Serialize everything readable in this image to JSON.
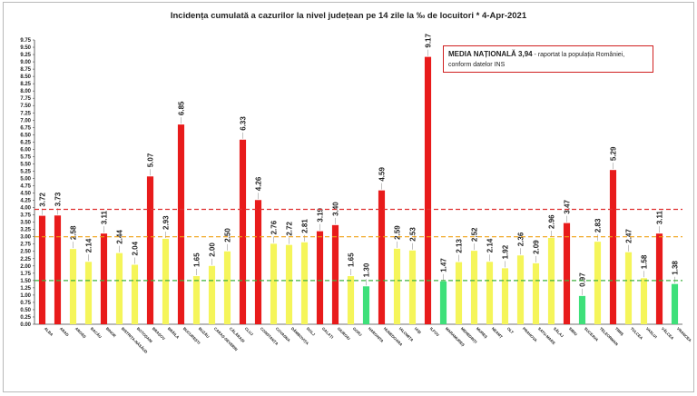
{
  "title": "Incidența cumulată a cazurilor la nivel județean pe 14 zile   la ‰ de locuitori  *  4-Apr-2021",
  "note": {
    "bold": "MEDIA NAȚIONALĂ 3,94",
    "text": " - raportat la populația României, conform datelor INS"
  },
  "chart_data": {
    "type": "bar",
    "title": "Incidența cumulată a cazurilor la nivel județean pe 14 zile   la ‰ de locuitori  *  4-Apr-2021",
    "xlabel": "",
    "ylabel": "",
    "ylim": [
      0,
      9.75
    ],
    "ystep": 0.25,
    "grid": false,
    "categories": [
      "ALBA",
      "ARAD",
      "ARGEȘ",
      "BACĂU",
      "BIHOR",
      "BISTRIȚA-NĂSĂUD",
      "BOTOȘANI",
      "BRAȘOV",
      "BRĂILA",
      "BUCUREȘTI",
      "BUZĂU",
      "CARAȘ-SEVERIN",
      "CĂLĂRAȘI",
      "CLUJ",
      "CONSTANȚA",
      "COVASNA",
      "DÂMBOVIȚA",
      "DOLJ",
      "GALAȚI",
      "GIURGIU",
      "GORJ",
      "HARGHITA",
      "HUNEDOARA",
      "IALOMIȚA",
      "IAȘI",
      "ILFOV",
      "MARAMUREȘ",
      "MEHEDINȚI",
      "MUREȘ",
      "NEAMȚ",
      "OLT",
      "PRAHOVA",
      "SATU-MARE",
      "SĂLAJ",
      "SIBIU",
      "SUCEAVA",
      "TELEORMAN",
      "TIMIȘ",
      "TULCEA",
      "VASLUI",
      "VÂLCEA",
      "VRANCEA"
    ],
    "values": [
      3.72,
      3.73,
      2.58,
      2.14,
      3.11,
      2.44,
      2.04,
      5.07,
      2.93,
      6.85,
      1.65,
      2.0,
      2.5,
      6.33,
      4.26,
      2.76,
      2.72,
      2.81,
      3.19,
      3.4,
      1.65,
      1.3,
      4.59,
      2.59,
      2.53,
      9.17,
      1.47,
      2.13,
      2.52,
      2.14,
      1.92,
      2.36,
      2.09,
      2.96,
      3.47,
      0.97,
      2.83,
      5.29,
      2.47,
      1.58,
      3.11,
      1.38
    ],
    "value_labels": [
      "3.72",
      "3.73",
      "2.58",
      "2.14",
      "3.11",
      "2.44",
      "2.04",
      "5.07",
      "2.93",
      "6.85",
      "1.65",
      "2.00",
      "2.50",
      "6.33",
      "4.26",
      "2.76",
      "2.72",
      "2.81",
      "3.19",
      "3.40",
      "1.65",
      "1.30",
      "4.59",
      "2.59",
      "2.53",
      "9.17",
      "1.47",
      "2.13",
      "2.52",
      "2.14",
      "1.92",
      "2.36",
      "2.09",
      "2.96",
      "3.47",
      "0.97",
      "2.83",
      "5.29",
      "2.47",
      "1.58",
      "3.11",
      "1.38"
    ],
    "thresholds": [
      {
        "value": 3.94,
        "color": "#e03030"
      },
      {
        "value": 3.0,
        "color": "#f0a010"
      },
      {
        "value": 1.5,
        "color": "#40b040"
      }
    ],
    "colors": {
      "high": "#e81b1b",
      "mid": "#f5f55a",
      "low": "#3ee07a",
      "axis": "#444444"
    }
  }
}
